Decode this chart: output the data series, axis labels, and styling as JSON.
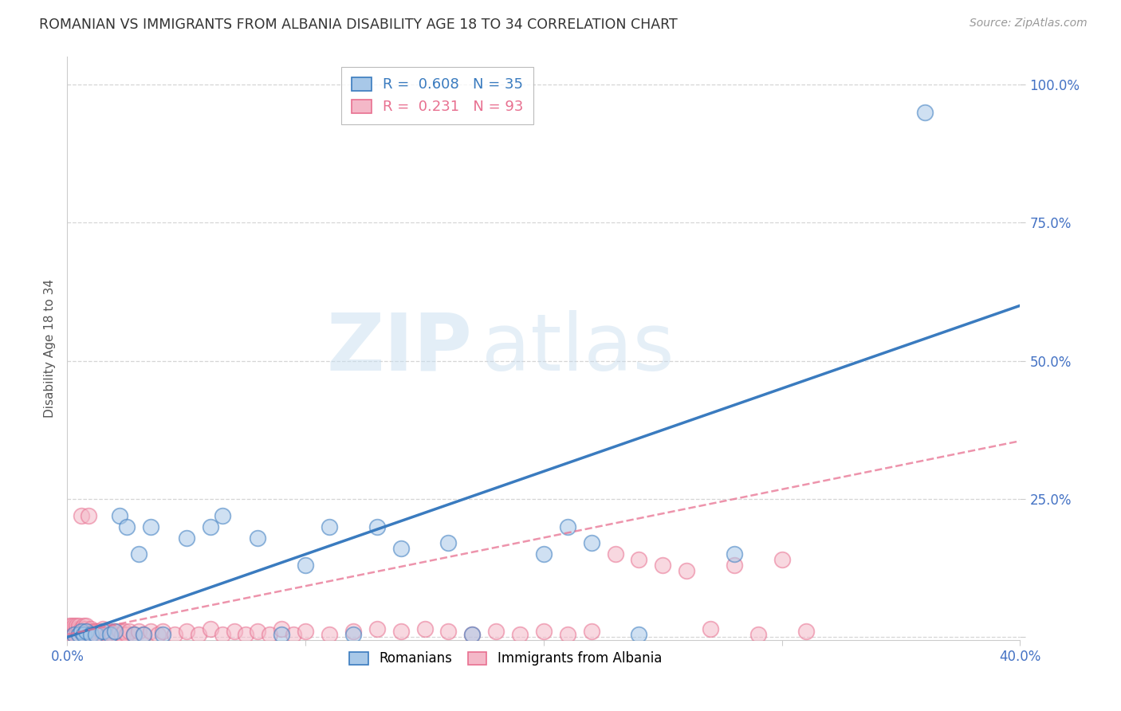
{
  "title": "ROMANIAN VS IMMIGRANTS FROM ALBANIA DISABILITY AGE 18 TO 34 CORRELATION CHART",
  "source": "Source: ZipAtlas.com",
  "ylabel": "Disability Age 18 to 34",
  "xlim": [
    0.0,
    0.4
  ],
  "ylim": [
    -0.005,
    1.05
  ],
  "xticks": [
    0.0,
    0.1,
    0.2,
    0.3,
    0.4
  ],
  "xticklabels": [
    "0.0%",
    "",
    "",
    "",
    "40.0%"
  ],
  "yticks": [
    0.0,
    0.25,
    0.5,
    0.75,
    1.0
  ],
  "yticklabels": [
    "",
    "25.0%",
    "50.0%",
    "75.0%",
    "100.0%"
  ],
  "blue_color": "#a8c8e8",
  "pink_color": "#f4b8c8",
  "blue_line_color": "#3a7bbf",
  "pink_line_color": "#e87090",
  "watermark_zip": "ZIP",
  "watermark_atlas": "atlas",
  "blue_line_x": [
    0.0,
    0.4
  ],
  "blue_line_y": [
    0.0,
    0.6
  ],
  "pink_line_x": [
    0.0,
    0.4
  ],
  "pink_line_y": [
    0.005,
    0.355
  ],
  "romanians_x": [
    0.003,
    0.005,
    0.006,
    0.007,
    0.008,
    0.01,
    0.012,
    0.015,
    0.018,
    0.02,
    0.022,
    0.025,
    0.028,
    0.03,
    0.032,
    0.035,
    0.04,
    0.05,
    0.06,
    0.065,
    0.08,
    0.09,
    0.1,
    0.11,
    0.12,
    0.13,
    0.14,
    0.16,
    0.17,
    0.2,
    0.21,
    0.22,
    0.24,
    0.28,
    0.36
  ],
  "romanians_y": [
    0.005,
    0.005,
    0.01,
    0.005,
    0.01,
    0.005,
    0.005,
    0.01,
    0.005,
    0.01,
    0.22,
    0.2,
    0.005,
    0.15,
    0.005,
    0.2,
    0.005,
    0.18,
    0.2,
    0.22,
    0.18,
    0.005,
    0.13,
    0.2,
    0.005,
    0.2,
    0.16,
    0.17,
    0.005,
    0.15,
    0.2,
    0.17,
    0.005,
    0.15,
    0.95
  ],
  "albania_x": [
    0.001,
    0.001,
    0.001,
    0.002,
    0.002,
    0.002,
    0.002,
    0.003,
    0.003,
    0.003,
    0.003,
    0.004,
    0.004,
    0.004,
    0.004,
    0.005,
    0.005,
    0.005,
    0.005,
    0.006,
    0.006,
    0.006,
    0.007,
    0.007,
    0.007,
    0.007,
    0.008,
    0.008,
    0.008,
    0.009,
    0.009,
    0.01,
    0.01,
    0.01,
    0.011,
    0.011,
    0.012,
    0.012,
    0.013,
    0.013,
    0.014,
    0.015,
    0.015,
    0.016,
    0.017,
    0.018,
    0.019,
    0.02,
    0.021,
    0.022,
    0.023,
    0.024,
    0.025,
    0.026,
    0.028,
    0.03,
    0.032,
    0.035,
    0.038,
    0.04,
    0.045,
    0.05,
    0.055,
    0.06,
    0.065,
    0.07,
    0.075,
    0.08,
    0.085,
    0.09,
    0.095,
    0.1,
    0.11,
    0.12,
    0.13,
    0.14,
    0.15,
    0.16,
    0.17,
    0.18,
    0.19,
    0.2,
    0.21,
    0.22,
    0.23,
    0.24,
    0.25,
    0.26,
    0.27,
    0.28,
    0.29,
    0.3,
    0.31
  ],
  "albania_y": [
    0.01,
    0.015,
    0.02,
    0.01,
    0.015,
    0.02,
    0.005,
    0.01,
    0.015,
    0.02,
    0.005,
    0.01,
    0.015,
    0.02,
    0.005,
    0.01,
    0.015,
    0.02,
    0.005,
    0.01,
    0.015,
    0.22,
    0.01,
    0.015,
    0.02,
    0.005,
    0.01,
    0.015,
    0.02,
    0.005,
    0.22,
    0.01,
    0.015,
    0.005,
    0.01,
    0.005,
    0.01,
    0.005,
    0.01,
    0.005,
    0.01,
    0.015,
    0.005,
    0.01,
    0.005,
    0.01,
    0.005,
    0.01,
    0.005,
    0.01,
    0.005,
    0.01,
    0.005,
    0.01,
    0.005,
    0.01,
    0.005,
    0.01,
    0.005,
    0.01,
    0.005,
    0.01,
    0.005,
    0.015,
    0.005,
    0.01,
    0.005,
    0.01,
    0.005,
    0.015,
    0.005,
    0.01,
    0.005,
    0.01,
    0.015,
    0.01,
    0.015,
    0.01,
    0.005,
    0.01,
    0.005,
    0.01,
    0.005,
    0.01,
    0.15,
    0.14,
    0.13,
    0.12,
    0.015,
    0.13,
    0.005,
    0.14,
    0.01
  ]
}
